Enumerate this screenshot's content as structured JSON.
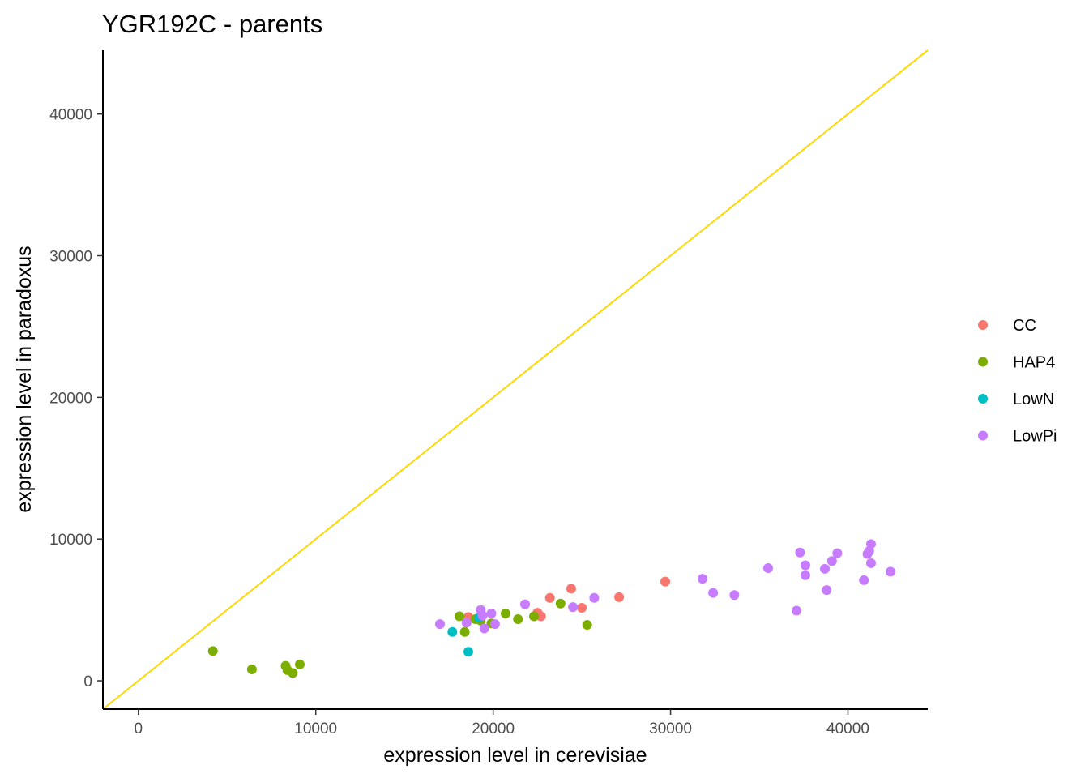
{
  "chart_data": {
    "type": "scatter",
    "title": "YGR192C - parents",
    "xlabel": "expression level in cerevisiae",
    "ylabel": "expression level in paradoxus",
    "xlim": [
      -2000,
      44500
    ],
    "ylim": [
      -2000,
      44500
    ],
    "x_ticks": [
      0,
      10000,
      20000,
      30000,
      40000
    ],
    "y_ticks": [
      0,
      10000,
      20000,
      30000,
      40000
    ],
    "x_tick_labels": [
      "0",
      "10000",
      "20000",
      "30000",
      "40000"
    ],
    "y_tick_labels": [
      "0",
      "10000",
      "20000",
      "30000",
      "40000"
    ],
    "grid": false,
    "legend_position": "right",
    "reference_line": {
      "type": "identity",
      "color": "#ffd700"
    },
    "series": [
      {
        "name": "CC",
        "color": "#f8766d",
        "points": [
          [
            18600,
            4500
          ],
          [
            22500,
            4800
          ],
          [
            22700,
            4550
          ],
          [
            23200,
            5850
          ],
          [
            24400,
            6500
          ],
          [
            25000,
            5150
          ],
          [
            27100,
            5900
          ],
          [
            29700,
            7000
          ]
        ]
      },
      {
        "name": "HAP4",
        "color": "#7cae00",
        "points": [
          [
            4200,
            2100
          ],
          [
            6400,
            800
          ],
          [
            8300,
            1050
          ],
          [
            8400,
            750
          ],
          [
            8700,
            550
          ],
          [
            9100,
            1150
          ],
          [
            18100,
            4550
          ],
          [
            18400,
            3450
          ],
          [
            19000,
            4350
          ],
          [
            19300,
            4250
          ],
          [
            19900,
            4050
          ],
          [
            20700,
            4750
          ],
          [
            21400,
            4350
          ],
          [
            22300,
            4550
          ],
          [
            23800,
            5450
          ],
          [
            25300,
            3950
          ]
        ]
      },
      {
        "name": "LowN",
        "color": "#00bfc4",
        "points": [
          [
            17700,
            3450
          ],
          [
            18600,
            2050
          ],
          [
            19200,
            4450
          ]
        ]
      },
      {
        "name": "LowPi",
        "color": "#c77cff",
        "points": [
          [
            17000,
            4000
          ],
          [
            18500,
            4100
          ],
          [
            19300,
            5000
          ],
          [
            19400,
            4600
          ],
          [
            19500,
            3700
          ],
          [
            19900,
            4750
          ],
          [
            20100,
            4000
          ],
          [
            21800,
            5400
          ],
          [
            24500,
            5200
          ],
          [
            25700,
            5850
          ],
          [
            31800,
            7200
          ],
          [
            32400,
            6200
          ],
          [
            33600,
            6050
          ],
          [
            35500,
            7950
          ],
          [
            37100,
            4950
          ],
          [
            37300,
            9050
          ],
          [
            37600,
            8150
          ],
          [
            37600,
            7450
          ],
          [
            38700,
            7900
          ],
          [
            38800,
            6400
          ],
          [
            39100,
            8450
          ],
          [
            39400,
            9000
          ],
          [
            40900,
            7100
          ],
          [
            41100,
            8950
          ],
          [
            41200,
            9150
          ],
          [
            41300,
            8300
          ],
          [
            41300,
            9650
          ],
          [
            42400,
            7700
          ]
        ]
      }
    ]
  }
}
